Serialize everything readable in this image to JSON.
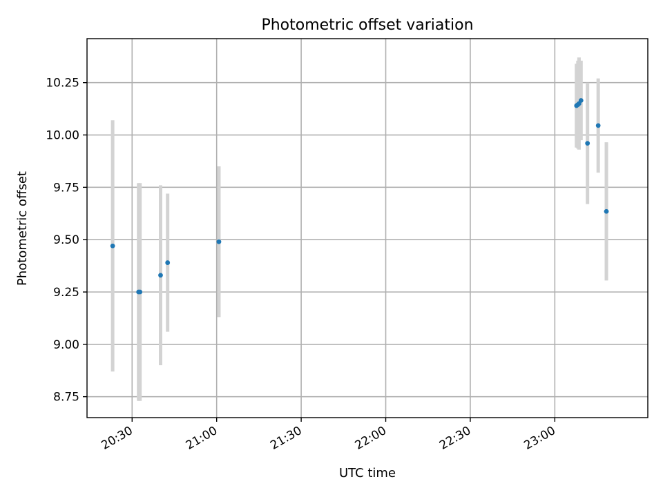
{
  "chart_data": {
    "type": "scatter",
    "title": "Photometric offset variation",
    "xlabel": "UTC time",
    "ylabel": "Photometric offset",
    "grid": true,
    "xlim": [
      "20:14",
      "23:33"
    ],
    "ylim": [
      8.65,
      10.46
    ],
    "x_ticks": [
      "20:30",
      "21:00",
      "21:30",
      "22:00",
      "22:30",
      "23:00"
    ],
    "y_ticks": [
      "8.75",
      "9.00",
      "9.25",
      "9.50",
      "9.75",
      "10.00",
      "10.25"
    ],
    "errorbar_color": "#d3d3d3",
    "point_color": "#1f77b4",
    "series": [
      {
        "points": [
          {
            "x": "20:23.1",
            "y": 9.47,
            "err": 0.6
          },
          {
            "x": "20:32.3",
            "y": 9.25,
            "err": 0.52
          },
          {
            "x": "20:32.8",
            "y": 9.25,
            "err": 0.52
          },
          {
            "x": "20:40.1",
            "y": 9.33,
            "err": 0.43
          },
          {
            "x": "20:42.6",
            "y": 9.39,
            "err": 0.33
          },
          {
            "x": "21:00.8",
            "y": 9.49,
            "err": 0.36
          },
          {
            "x": "23:07.7",
            "y": 10.14,
            "err": 0.2
          },
          {
            "x": "23:08.2",
            "y": 10.145,
            "err": 0.21
          },
          {
            "x": "23:08.6",
            "y": 10.15,
            "err": 0.22
          },
          {
            "x": "23:09.3",
            "y": 10.165,
            "err": 0.19
          },
          {
            "x": "23:11.6",
            "y": 9.96,
            "err": 0.29
          },
          {
            "x": "23:15.4",
            "y": 10.045,
            "err": 0.225
          },
          {
            "x": "23:18.3",
            "y": 9.635,
            "err": 0.33
          }
        ]
      }
    ]
  }
}
